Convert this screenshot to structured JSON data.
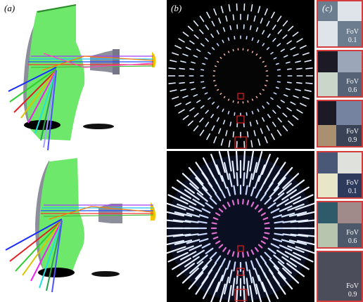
{
  "panels": {
    "a": {
      "label": "(a)"
    },
    "b": {
      "label": "(b)"
    },
    "c": {
      "label": "(c)"
    }
  },
  "fov_tiles": [
    {
      "label": "FoV",
      "value": "0.1"
    },
    {
      "label": "FoV",
      "value": "0.6"
    },
    {
      "label": "FoV",
      "value": "0.9"
    },
    {
      "label": "FoV",
      "value": "0.1"
    },
    {
      "label": "FoV",
      "value": "0.6"
    },
    {
      "label": "FoV",
      "value": "0.9"
    }
  ],
  "colors": {
    "lens_green": "#6ee86a",
    "lens_gray": "#8d8e9c",
    "marker_red": "#e02020"
  }
}
